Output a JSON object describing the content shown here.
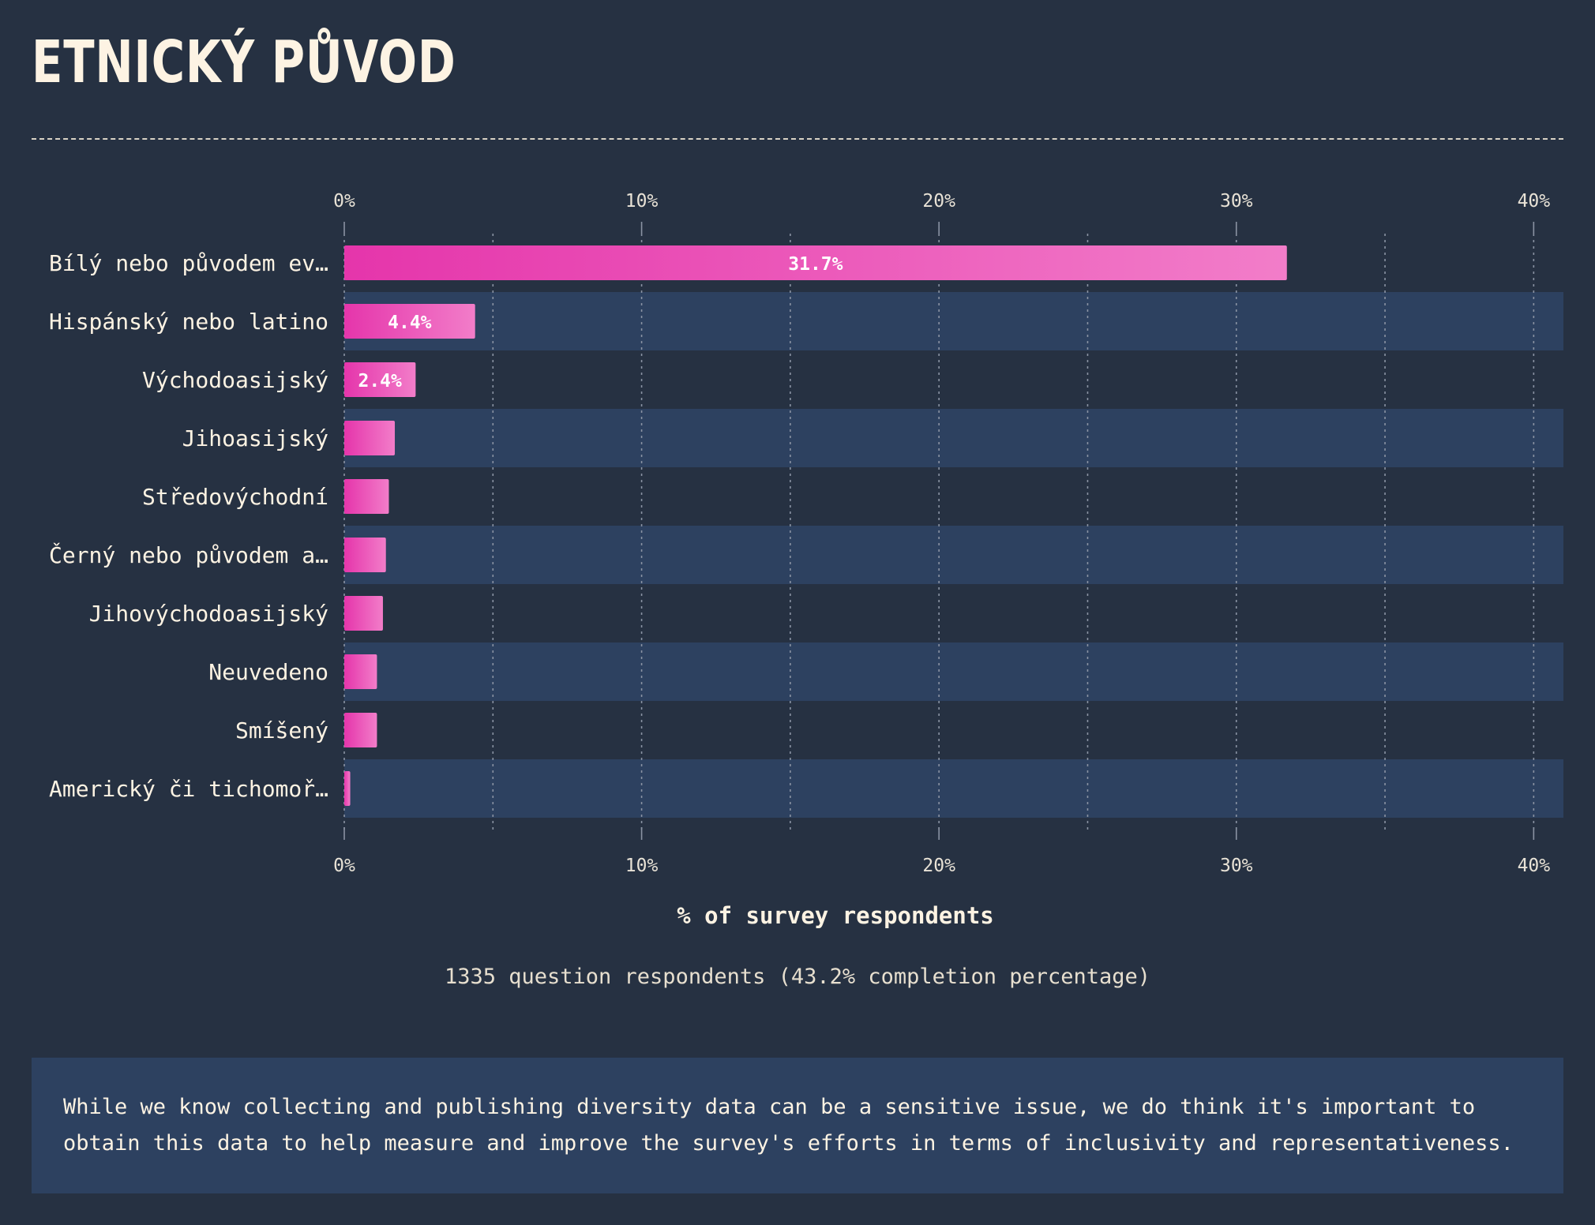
{
  "page": {
    "title": "ETNICKÝ PŮVOD",
    "footnote": "1335 question respondents (43.2% completion percentage)",
    "note": "While we know collecting and publishing diversity data can be a sensitive issue, we do think it's important to obtain this data to help measure and improve the survey's efforts in terms of inclusivity and representativeness."
  },
  "colors": {
    "background": "#263142",
    "stripe": "#2d4160",
    "bar_start": "#e535ab",
    "bar_end": "#f27dc9",
    "text": "#fdf3e3"
  },
  "chart_data": {
    "type": "bar",
    "orientation": "horizontal",
    "categories": [
      "Bílý nebo původem ev…",
      "Hispánský nebo latino",
      "Východoasijský",
      "Jihoasijský",
      "Středovýchodní",
      "Černý nebo původem a…",
      "Jihovýchodoasijský",
      "Neuvedeno",
      "Smíšený",
      "Americký či tichomoř…"
    ],
    "values": [
      31.7,
      4.4,
      2.4,
      1.7,
      1.5,
      1.4,
      1.3,
      1.1,
      1.1,
      0.2
    ],
    "data_labels": [
      "31.7%",
      "4.4%",
      "2.4%",
      "",
      "",
      "",
      "",
      "",
      "",
      ""
    ],
    "xlim": [
      0,
      41
    ],
    "x_ticks": [
      0,
      10,
      20,
      30,
      40
    ],
    "x_tick_labels": [
      "0%",
      "10%",
      "20%",
      "30%",
      "40%"
    ],
    "xlabel": "% of survey respondents",
    "grid": true
  }
}
